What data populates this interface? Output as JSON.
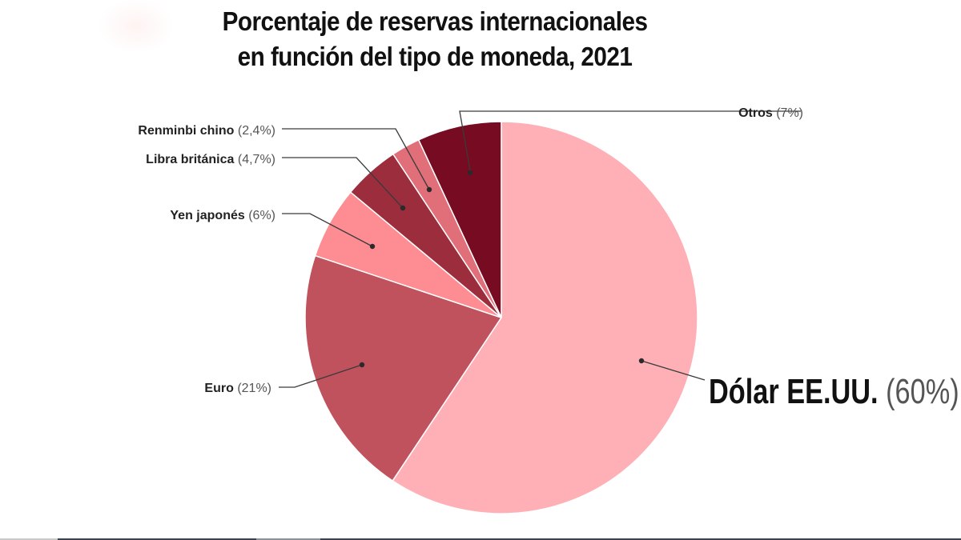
{
  "title": {
    "line1": "Porcentaje de reservas internacionales",
    "line2": "en función del tipo de moneda, 2021"
  },
  "labels": {
    "dolar": {
      "name": "Dólar EE.UU.",
      "pct": "(60%)"
    },
    "euro": {
      "name": "Euro",
      "pct": "(21%)"
    },
    "yen": {
      "name": "Yen japonés",
      "pct": "(6%)"
    },
    "libra": {
      "name": "Libra británica",
      "pct": "(4,7%)"
    },
    "renminbi": {
      "name": "Renminbi chino",
      "pct": "(2,4%)"
    },
    "otros": {
      "name": "Otros",
      "pct": "(7%)"
    }
  },
  "colors": {
    "dolar": "#feb0b6",
    "euro": "#c0525e",
    "yen": "#fd8d93",
    "libra": "#9b2d3c",
    "renminbi": "#e06f79",
    "otros": "#760b22",
    "leader": "#3a3a3a"
  },
  "chart_data": {
    "type": "pie",
    "title": "Porcentaje de reservas internacionales en función del tipo de moneda, 2021",
    "categories": [
      "Dólar EE.UU.",
      "Euro",
      "Yen japonés",
      "Libra británica",
      "Renminbi chino",
      "Otros"
    ],
    "values": [
      60,
      21,
      6,
      4.7,
      2.4,
      7
    ],
    "value_labels": [
      "60%",
      "21%",
      "6%",
      "4,7%",
      "2,4%",
      "7%"
    ],
    "start_angle": "12 o'clock",
    "direction": "clockwise",
    "legend": "none (callout labels with leader lines)"
  }
}
